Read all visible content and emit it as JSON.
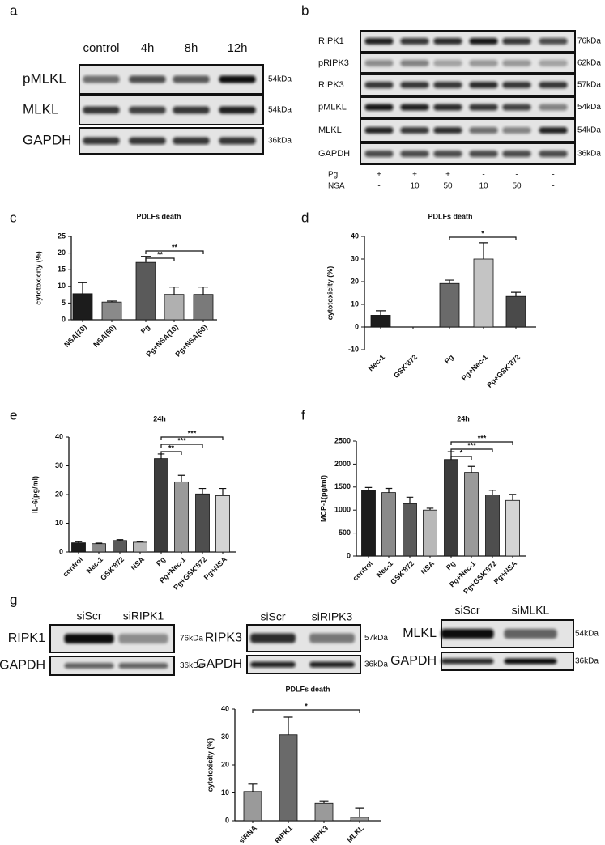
{
  "panel_a": {
    "label": "a",
    "lanes": [
      "control",
      "4h",
      "8h",
      "12h"
    ],
    "rows": [
      {
        "name": "pMLKL",
        "size": "54kDa"
      },
      {
        "name": "MLKL",
        "size": "54kDa"
      },
      {
        "name": "GAPDH",
        "size": "36kDa"
      }
    ]
  },
  "panel_b": {
    "label": "b",
    "rows": [
      {
        "name": "RIPK1",
        "size": "76kDa"
      },
      {
        "name": "pRIPK3",
        "size": "62kDa"
      },
      {
        "name": "RIPK3",
        "size": "57kDa"
      },
      {
        "name": "pMLKL",
        "size": "54kDa"
      },
      {
        "name": "MLKL",
        "size": "54kDa"
      },
      {
        "name": "GAPDH",
        "size": "36kDa"
      }
    ],
    "treatments": [
      {
        "name": "Pg",
        "values": [
          "+",
          "+",
          "+",
          "-",
          "-",
          "-"
        ]
      },
      {
        "name": "NSA",
        "values": [
          "-",
          "10",
          "50",
          "10",
          "50",
          "-"
        ]
      }
    ]
  },
  "panel_g": {
    "label": "g",
    "blots": [
      {
        "lanes": [
          "siScr",
          "siRIPK1"
        ],
        "rows": [
          {
            "name": "RIPK1",
            "size": "76kDa"
          },
          {
            "name": "GAPDH",
            "size": "36kDa"
          }
        ]
      },
      {
        "lanes": [
          "siScr",
          "siRIPK3"
        ],
        "rows": [
          {
            "name": "RIPK3",
            "size": "57kDa"
          },
          {
            "name": "GAPDH",
            "size": "36kDa"
          }
        ]
      },
      {
        "lanes": [
          "siScr",
          "siMLKL"
        ],
        "rows": [
          {
            "name": "MLKL",
            "size": "54kDa"
          },
          {
            "name": "GAPDH",
            "size": "36kDa"
          }
        ]
      }
    ]
  },
  "chart_data": [
    {
      "type": "bar",
      "panel": "c",
      "title": "PDLFs death",
      "y_label": "cytotoxicity  (%)",
      "categories": [
        "NSA(10)",
        "NSA(50)",
        "Pg",
        "Pg+NSA(10)",
        "Pg+NSA(50)"
      ],
      "values": [
        7.8,
        5.3,
        17.2,
        7.6,
        7.6
      ],
      "errors": [
        3.3,
        0.3,
        1.8,
        2.2,
        2.2
      ],
      "colors": [
        "#1c1c1c",
        "#8a8a8a",
        "#5a5a5a",
        "#b0b0b0",
        "#7a7a7a"
      ],
      "ylim": [
        0,
        25
      ],
      "yticks": [
        0,
        5,
        10,
        15,
        20,
        25
      ],
      "annotations": [
        {
          "label": "**",
          "between": [
            "Pg",
            "Pg+NSA(10)"
          ]
        },
        {
          "label": "**",
          "between": [
            "Pg",
            "Pg+NSA(50)"
          ]
        }
      ]
    },
    {
      "type": "bar",
      "panel": "d",
      "title": "PDLFs  death",
      "y_label": "cytotoxicity  (%)",
      "categories": [
        "Nec-1",
        "GSK'872",
        "Pg",
        "Pg+Nec-1",
        "Pg+GSK'872"
      ],
      "values": [
        5.2,
        null,
        19.2,
        30,
        13.5
      ],
      "errors": [
        2,
        null,
        1.5,
        7.2,
        1.8
      ],
      "colors": [
        "#1c1c1c",
        "#8a8a8a",
        "#6a6a6a",
        "#c4c4c4",
        "#4a4a4a"
      ],
      "ylim": [
        -10,
        40
      ],
      "yticks": [
        -10,
        0,
        10,
        20,
        30,
        40
      ],
      "annotations": [
        {
          "label": "*",
          "between": [
            "Pg",
            "Pg+GSK'872"
          ]
        }
      ]
    },
    {
      "type": "bar",
      "panel": "e",
      "title": "24h",
      "y_label": "IL-6(pg/ml)",
      "categories": [
        "control",
        "Nec-1",
        "GSK'872",
        "NSA",
        "Pg",
        "Pg+Nec-1",
        "Pg+GSK'872",
        "Pg+NSA"
      ],
      "values": [
        3.2,
        2.9,
        4,
        3.4,
        32.5,
        24.4,
        20.2,
        19.6
      ],
      "errors": [
        0.4,
        0.2,
        0.3,
        0.3,
        1.6,
        2.3,
        1.9,
        2.5
      ],
      "colors": [
        "#1c1c1c",
        "#8a8a8a",
        "#5a5a5a",
        "#b8b8b8",
        "#3c3c3c",
        "#9a9a9a",
        "#4e4e4e",
        "#d4d4d4"
      ],
      "ylim": [
        0,
        40
      ],
      "yticks": [
        0,
        10,
        20,
        30,
        40
      ],
      "annotations": [
        {
          "label": "**",
          "between": [
            "Pg",
            "Pg+Nec-1"
          ]
        },
        {
          "label": "***",
          "between": [
            "Pg",
            "Pg+GSK'872"
          ]
        },
        {
          "label": "***",
          "between": [
            "Pg",
            "Pg+NSA"
          ]
        }
      ]
    },
    {
      "type": "bar",
      "panel": "f",
      "title": "24h",
      "y_label": "MCP-1(pg/ml)",
      "categories": [
        "control",
        "Nec-1",
        "GSK'872",
        "NSA",
        "Pg",
        "Pg+Nec-1",
        "Pg+GSK'872",
        "Pg+NSA"
      ],
      "values": [
        1430,
        1380,
        1140,
        1000,
        2100,
        1820,
        1330,
        1210
      ],
      "errors": [
        60,
        90,
        140,
        40,
        170,
        130,
        100,
        130
      ],
      "colors": [
        "#1c1c1c",
        "#8a8a8a",
        "#5a5a5a",
        "#b8b8b8",
        "#3c3c3c",
        "#9a9a9a",
        "#4e4e4e",
        "#d4d4d4"
      ],
      "ylim": [
        0,
        2500
      ],
      "yticks": [
        0,
        500,
        1000,
        1500,
        2000,
        2500
      ],
      "annotations": [
        {
          "label": "*",
          "between": [
            "Pg",
            "Pg+Nec-1"
          ]
        },
        {
          "label": "***",
          "between": [
            "Pg",
            "Pg+GSK'872"
          ]
        },
        {
          "label": "***",
          "between": [
            "Pg",
            "Pg+NSA"
          ]
        }
      ]
    },
    {
      "type": "bar",
      "title": "PDLFs death",
      "y_label": "cytotoxicity  (%)",
      "categories": [
        "siRNA",
        "RIPK1",
        "RIPK3",
        "MLKL"
      ],
      "values": [
        10.5,
        30.8,
        6.3,
        1.2
      ],
      "errors": [
        2.6,
        6.3,
        0.6,
        3.4
      ],
      "colors": [
        "#9a9a9a",
        "#6a6a6a",
        "#9a9a9a",
        "#9a9a9a"
      ],
      "ylim": [
        0,
        40
      ],
      "yticks": [
        0,
        10,
        20,
        30,
        40
      ],
      "annotations": [
        {
          "label": "*",
          "between": [
            "siRNA",
            "MLKL"
          ]
        }
      ]
    }
  ]
}
